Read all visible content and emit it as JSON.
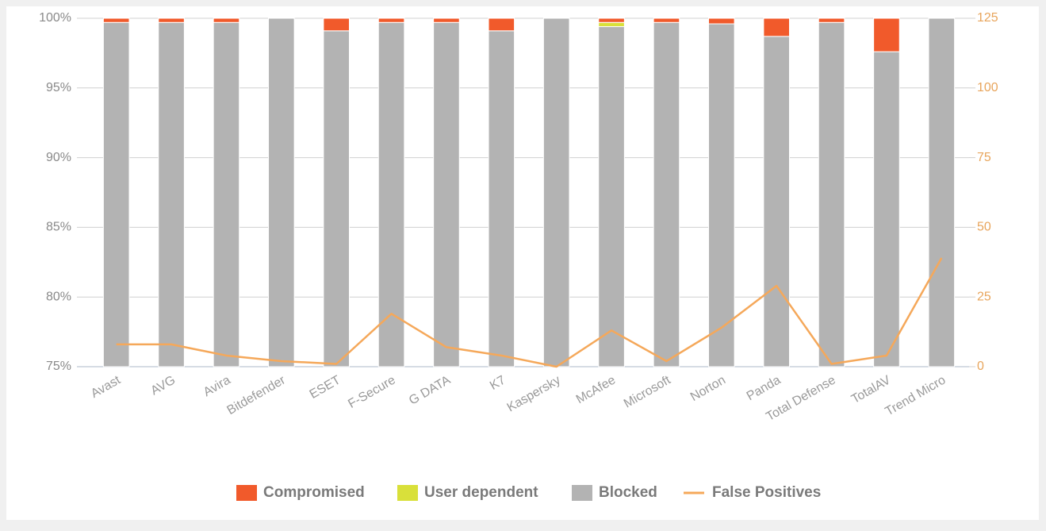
{
  "chart_data": {
    "type": "bar",
    "stacked": true,
    "categories": [
      "Avast",
      "AVG",
      "Avira",
      "Bitdefender",
      "ESET",
      "F-Secure",
      "G DATA",
      "K7",
      "Kaspersky",
      "McAfee",
      "Microsoft",
      "Norton",
      "Panda",
      "Total Defense",
      "TotalAV",
      "Trend Micro"
    ],
    "series": [
      {
        "name": "Compromised",
        "color": "#f15a2b",
        "values": [
          0.3,
          0.3,
          0.3,
          0,
          0.9,
          0.3,
          0.3,
          0.9,
          0,
          0.3,
          0.3,
          0.4,
          1.3,
          0.3,
          2.4,
          0
        ]
      },
      {
        "name": "User dependent",
        "color": "#d9e03a",
        "values": [
          0,
          0,
          0,
          0,
          0,
          0,
          0,
          0,
          0,
          0.3,
          0,
          0,
          0,
          0,
          0,
          0
        ]
      },
      {
        "name": "Blocked",
        "color": "#b3b3b3",
        "values": [
          99.7,
          99.7,
          99.7,
          100,
          99.1,
          99.7,
          99.7,
          99.1,
          100,
          99.4,
          99.7,
          99.6,
          98.7,
          99.7,
          97.6,
          100
        ]
      },
      {
        "name": "False Positives",
        "color": "#f5a85a",
        "axis": "y2",
        "values": [
          8,
          8,
          4,
          2,
          1,
          19,
          7,
          4,
          0,
          13,
          2,
          14,
          29,
          1,
          4,
          39
        ]
      }
    ],
    "ylim": [
      75,
      100
    ],
    "yticks": [
      {
        "value": 75,
        "label": "75%"
      },
      {
        "value": 80,
        "label": "80%"
      },
      {
        "value": 85,
        "label": "85%"
      },
      {
        "value": 90,
        "label": "90%"
      },
      {
        "value": 95,
        "label": "95%"
      },
      {
        "value": 100,
        "label": "100%"
      }
    ],
    "y2lim": [
      0,
      125
    ],
    "y2ticks": [
      0,
      25,
      50,
      75,
      100,
      125
    ],
    "grid": true,
    "legend": "bottom"
  }
}
